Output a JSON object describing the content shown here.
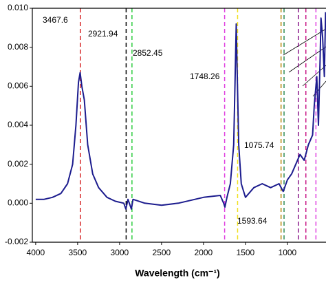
{
  "chart_data": {
    "type": "line",
    "x_label": "Wavelength (cm⁻¹)",
    "xlim": [
      4040,
      540
    ],
    "ylim": [
      -0.002,
      0.01
    ],
    "xticks": [
      4000,
      3500,
      3000,
      2500,
      2000,
      1500,
      1000
    ],
    "yticks": [
      {
        "value": -0.002,
        "label": "-0.002"
      },
      {
        "value": 0,
        "label": "0.000"
      },
      {
        "value": 0.002,
        "label": "0.002"
      },
      {
        "value": 0.004,
        "label": "0.004"
      },
      {
        "value": 0.006,
        "label": "0.006"
      },
      {
        "value": 0.008,
        "label": "0.008"
      },
      {
        "value": 0.01,
        "label": "0.010"
      }
    ],
    "series": [
      {
        "color": "#1c1c8e",
        "x": [
          4000,
          3900,
          3800,
          3700,
          3620,
          3560,
          3520,
          3490,
          3470,
          3450,
          3420,
          3380,
          3320,
          3250,
          3150,
          3050,
          2950,
          2925,
          2900,
          2860,
          2840,
          2700,
          2500,
          2300,
          2000,
          1800,
          1760,
          1745,
          1720,
          1680,
          1640,
          1625,
          1610,
          1600,
          1580,
          1550,
          1500,
          1400,
          1300,
          1200,
          1100,
          1050,
          1000,
          950,
          900,
          850,
          800,
          750,
          700,
          680,
          650,
          630,
          610,
          600,
          580,
          560,
          545
        ],
        "values": [
          0.0002,
          0.0002,
          0.0003,
          0.0005,
          0.001,
          0.002,
          0.004,
          0.0062,
          0.0067,
          0.006,
          0.0053,
          0.003,
          0.0015,
          0.0008,
          0.0003,
          0.0001,
          0.0,
          -0.0003,
          0.0002,
          -0.0003,
          0.0002,
          0.0,
          -0.0001,
          0.0,
          0.0003,
          0.0004,
          0.0,
          -0.0002,
          0.0003,
          0.001,
          0.003,
          0.006,
          0.0092,
          0.007,
          0.003,
          0.001,
          0.0003,
          0.0008,
          0.001,
          0.0008,
          0.001,
          0.0006,
          0.0012,
          0.0015,
          0.002,
          0.0025,
          0.0022,
          0.003,
          0.0035,
          0.005,
          0.0065,
          0.004,
          0.0075,
          0.0095,
          0.0085,
          0.0065,
          0.0098
        ]
      }
    ],
    "reference_lines": [
      {
        "x": 3467.6,
        "color": "#d62728",
        "label": "3467.6"
      },
      {
        "x": 2921.94,
        "color": "#000000",
        "label": "2921.94"
      },
      {
        "x": 2852.45,
        "color": "#2ecc40",
        "label": "2852.45"
      },
      {
        "x": 1748.26,
        "color": "#e040e0",
        "label": "1748.26"
      },
      {
        "x": 1593.64,
        "color": "#f0e020",
        "label": "1593.64"
      },
      {
        "x": 1075.74,
        "color": "#b8860b",
        "label": "1075.74"
      },
      {
        "x": 1040,
        "color": "#2e8b57"
      },
      {
        "x": 870,
        "color": "#8b1a8b"
      },
      {
        "x": 780,
        "color": "#c71585"
      },
      {
        "x": 660,
        "color": "#e040e0"
      }
    ]
  }
}
